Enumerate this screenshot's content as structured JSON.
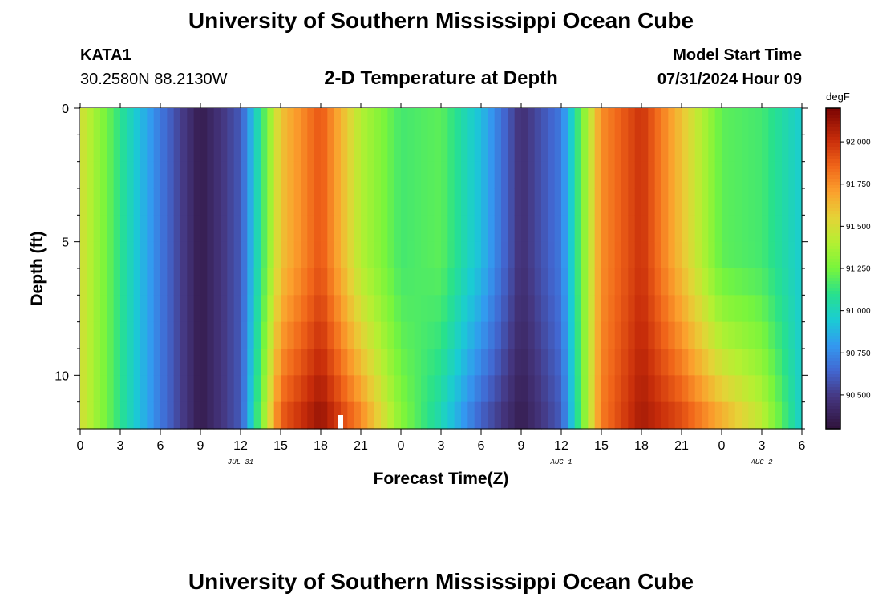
{
  "chart_data": {
    "type": "heatmap",
    "title": "University of Southern Mississippi Ocean Cube",
    "subtitle": "2-D Temperature at Depth",
    "station": "KATA1",
    "location": "30.2580N  88.2130W",
    "model_start_label": "Model Start Time",
    "model_start_value": "07/31/2024 Hour 09",
    "xlabel": "Forecast Time(Z)",
    "ylabel": "Depth (ft)",
    "x_hours": [
      0,
      54
    ],
    "x_tick_labels": [
      "0",
      "3",
      "6",
      "9",
      "12",
      "15",
      "18",
      "21",
      "0",
      "3",
      "6",
      "9",
      "12",
      "15",
      "18",
      "21",
      "0",
      "3",
      "6"
    ],
    "date_labels": [
      {
        "label": "JUL 31",
        "hour": 12
      },
      {
        "label": "AUG 1",
        "hour": 36
      },
      {
        "label": "AUG 2",
        "hour": 51
      }
    ],
    "ylim": [
      0,
      12
    ],
    "y_tick_labels": [
      "0",
      "5",
      "10"
    ],
    "y_tick_values": [
      0,
      5,
      10
    ],
    "colorbar": {
      "units": "degF",
      "range": [
        90.3,
        92.2
      ],
      "tick_values": [
        92.0,
        91.75,
        91.5,
        91.25,
        91.0,
        90.75,
        90.5
      ],
      "tick_labels": [
        "92.000",
        "91.750",
        "91.500",
        "91.250",
        "91.000",
        "90.750",
        "90.500"
      ]
    },
    "surface_temperature_series": {
      "hours": [
        0,
        3,
        6,
        9,
        12,
        15,
        18,
        21,
        24,
        27,
        30,
        33,
        36,
        39,
        42,
        45,
        48,
        51,
        54
      ],
      "values": [
        91.5,
        91.1,
        90.7,
        90.35,
        90.6,
        91.6,
        91.9,
        91.4,
        91.15,
        91.2,
        90.9,
        90.45,
        90.7,
        91.75,
        92.0,
        91.6,
        91.2,
        91.15,
        90.95
      ]
    },
    "bottom_temperature_series": {
      "hours": [
        0,
        3,
        6,
        9,
        12,
        15,
        18,
        21,
        24,
        27,
        30,
        33,
        36,
        39,
        42,
        45,
        48,
        51,
        54
      ],
      "values": [
        91.5,
        91.1,
        90.7,
        90.35,
        90.6,
        91.9,
        92.15,
        91.8,
        91.3,
        91.0,
        90.6,
        90.35,
        90.6,
        91.8,
        92.1,
        91.95,
        91.7,
        91.45,
        90.95
      ]
    }
  },
  "footer_title": "University of Southern Mississippi Ocean Cube"
}
